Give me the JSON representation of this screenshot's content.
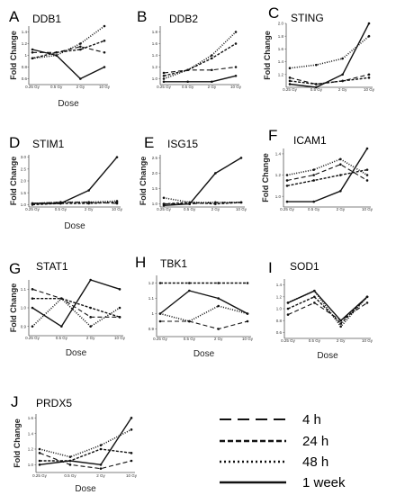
{
  "chart_data": [
    {
      "letter": "A",
      "title": "DDB1",
      "type": "line",
      "categories": [
        "0.25 Gy",
        "0.5 Gy",
        "2 Gy",
        "10 Gy"
      ],
      "xlabel": "Dose",
      "ylabel": "Fold Change",
      "yticks": [
        "0.6",
        "0.8",
        "1",
        "1.2",
        "1.4"
      ],
      "ylim": [
        0.5,
        1.5
      ],
      "series": [
        {
          "style": "4h",
          "values": [
            1.05,
            1.05,
            1.15,
            1.05
          ]
        },
        {
          "style": "24h",
          "values": [
            0.95,
            1.05,
            1.1,
            1.25
          ]
        },
        {
          "style": "48h",
          "values": [
            0.95,
            1.0,
            1.2,
            1.5
          ]
        },
        {
          "style": "1w",
          "values": [
            1.1,
            1.0,
            0.6,
            0.8
          ]
        }
      ]
    },
    {
      "letter": "B",
      "title": "DDB2",
      "type": "line",
      "categories": [
        "0.25 Gy",
        "0.5 Gy",
        "2 Gy",
        "10 Gy"
      ],
      "xlabel": "",
      "ylabel": "",
      "yticks": [
        "1.0",
        "1.2",
        "1.4",
        "1.6",
        "1.8"
      ],
      "ylim": [
        0.9,
        1.9
      ],
      "series": [
        {
          "style": "4h",
          "values": [
            1.1,
            1.15,
            1.15,
            1.2
          ]
        },
        {
          "style": "24h",
          "values": [
            1.05,
            1.15,
            1.35,
            1.6
          ]
        },
        {
          "style": "48h",
          "values": [
            1.0,
            1.15,
            1.4,
            1.8
          ]
        },
        {
          "style": "1w",
          "values": [
            0.95,
            0.95,
            0.95,
            1.05
          ]
        }
      ]
    },
    {
      "letter": "C",
      "title": "STING",
      "type": "line",
      "categories": [
        "0.25 Gy",
        "0.5 Gy",
        "2 Gy",
        "10 Gy"
      ],
      "xlabel": "",
      "ylabel": "Fold Change",
      "yticks": [
        "1.2",
        "1.4",
        "1.6",
        "1.8",
        "2.0"
      ],
      "ylim": [
        1.0,
        2.0
      ],
      "series": [
        {
          "style": "4h",
          "values": [
            1.15,
            1.05,
            1.1,
            1.2
          ]
        },
        {
          "style": "24h",
          "values": [
            1.1,
            1.05,
            1.1,
            1.15
          ]
        },
        {
          "style": "48h",
          "values": [
            1.3,
            1.35,
            1.45,
            1.8
          ]
        },
        {
          "style": "1w",
          "values": [
            1.05,
            1.0,
            1.2,
            2.0
          ]
        }
      ]
    },
    {
      "letter": "D",
      "title": "STIM1",
      "type": "line",
      "categories": [
        "0.25 Gy",
        "0.5 Gy",
        "2 Gy",
        "10 Gy"
      ],
      "xlabel": "Dose",
      "ylabel": "Fold Change",
      "yticks": [
        "1.0",
        "1.5",
        "2.0",
        "2.5",
        "3.0"
      ],
      "ylim": [
        0.9,
        3.1
      ],
      "series": [
        {
          "style": "4h",
          "values": [
            1.05,
            1.1,
            1.1,
            1.05
          ]
        },
        {
          "style": "24h",
          "values": [
            1.0,
            1.05,
            1.05,
            1.1
          ]
        },
        {
          "style": "48h",
          "values": [
            1.05,
            1.1,
            1.1,
            1.15
          ]
        },
        {
          "style": "1w",
          "values": [
            1.05,
            1.05,
            1.6,
            3.0
          ]
        }
      ]
    },
    {
      "letter": "E",
      "title": "ISG15",
      "type": "line",
      "categories": [
        "0.25 Gy",
        "0.5 Gy",
        "2 Gy",
        "10 Gy"
      ],
      "xlabel": "",
      "ylabel": "Fold Change",
      "yticks": [
        "1.0",
        "1.5",
        "2.0",
        "2.5"
      ],
      "ylim": [
        0.9,
        2.6
      ],
      "series": [
        {
          "style": "4h",
          "values": [
            1.0,
            1.0,
            1.05,
            1.05
          ]
        },
        {
          "style": "24h",
          "values": [
            1.0,
            1.05,
            1.0,
            1.05
          ]
        },
        {
          "style": "48h",
          "values": [
            1.2,
            1.05,
            1.05,
            1.05
          ]
        },
        {
          "style": "1w",
          "values": [
            0.95,
            1.0,
            2.0,
            2.5
          ]
        }
      ]
    },
    {
      "letter": "F",
      "title": "ICAM1",
      "type": "line",
      "categories": [
        "0.25 Gy",
        "0.5 Gy",
        "2 Gy",
        "10 Gy"
      ],
      "xlabel": "",
      "ylabel": "Fold Change",
      "yticks": [
        "1.0",
        "1.2",
        "1.4"
      ],
      "ylim": [
        0.9,
        1.45
      ],
      "series": [
        {
          "style": "4h",
          "values": [
            1.15,
            1.2,
            1.3,
            1.15
          ]
        },
        {
          "style": "24h",
          "values": [
            1.1,
            1.15,
            1.2,
            1.25
          ]
        },
        {
          "style": "48h",
          "values": [
            1.2,
            1.25,
            1.35,
            1.2
          ]
        },
        {
          "style": "1w",
          "values": [
            0.95,
            0.95,
            1.05,
            1.45
          ]
        }
      ]
    },
    {
      "letter": "G",
      "title": "STAT1",
      "type": "line",
      "categories": [
        "0.25 Gy",
        "0.5 Gy",
        "2 Gy",
        "10 Gy"
      ],
      "xlabel": "Dose",
      "ylabel": "Fold Change",
      "yticks": [
        "0.9",
        "1.0",
        "1.1"
      ],
      "ylim": [
        0.85,
        1.15
      ],
      "series": [
        {
          "style": "4h",
          "values": [
            1.1,
            1.05,
            0.95,
            0.95
          ]
        },
        {
          "style": "24h",
          "values": [
            1.05,
            1.05,
            1.0,
            0.95
          ]
        },
        {
          "style": "48h",
          "values": [
            0.9,
            1.05,
            0.9,
            1.0
          ]
        },
        {
          "style": "1w",
          "values": [
            1.0,
            0.9,
            1.15,
            1.1
          ]
        }
      ]
    },
    {
      "letter": "H",
      "title": "TBK1",
      "type": "line",
      "categories": [
        "0.25 Gy",
        "0.5 Gy",
        "2 Gy",
        "10 Gy"
      ],
      "xlabel": "Dose",
      "ylabel": "",
      "yticks": [
        "0.9",
        "1",
        "1.1",
        "1.2"
      ],
      "ylim": [
        0.85,
        1.25
      ],
      "series": [
        {
          "style": "4h",
          "values": [
            0.95,
            0.95,
            0.9,
            0.95
          ]
        },
        {
          "style": "24h",
          "values": [
            1.2,
            1.2,
            1.2,
            1.2
          ]
        },
        {
          "style": "48h",
          "values": [
            1.0,
            0.95,
            1.05,
            1.0
          ]
        },
        {
          "style": "1w",
          "values": [
            1.0,
            1.15,
            1.1,
            1.0
          ]
        }
      ]
    },
    {
      "letter": "I",
      "title": "SOD1",
      "type": "line",
      "categories": [
        "0.25 Gy",
        "0.5 Gy",
        "2 Gy",
        "10 Gy"
      ],
      "xlabel": "Dose",
      "ylabel": "",
      "yticks": [
        "0.6",
        "0.8",
        "1.0",
        "1.2",
        "1.4"
      ],
      "ylim": [
        0.5,
        1.5
      ],
      "series": [
        {
          "style": "4h",
          "values": [
            0.9,
            1.1,
            0.8,
            1.1
          ]
        },
        {
          "style": "24h",
          "values": [
            1.0,
            1.2,
            0.75,
            1.2
          ]
        },
        {
          "style": "48h",
          "values": [
            1.1,
            1.3,
            0.7,
            1.2
          ]
        },
        {
          "style": "1w",
          "values": [
            1.1,
            1.3,
            0.8,
            1.2
          ]
        }
      ]
    },
    {
      "letter": "J",
      "title": "PRDX5",
      "type": "line",
      "categories": [
        "0.25 Gy",
        "0.5 Gy",
        "2 Gy",
        "10 Gy"
      ],
      "xlabel": "Dose",
      "ylabel": "Fold Change",
      "yticks": [
        "1.0",
        "1.2",
        "1.4",
        "1.6"
      ],
      "ylim": [
        0.9,
        1.65
      ],
      "series": [
        {
          "style": "4h",
          "values": [
            1.15,
            1.0,
            0.95,
            1.05
          ]
        },
        {
          "style": "24h",
          "values": [
            1.05,
            1.05,
            1.2,
            1.15
          ]
        },
        {
          "style": "48h",
          "values": [
            1.2,
            1.1,
            1.25,
            1.45
          ]
        },
        {
          "style": "1w",
          "values": [
            1.0,
            1.05,
            1.0,
            1.6
          ]
        }
      ]
    }
  ],
  "legend": [
    {
      "style": "4h",
      "label": "4 h"
    },
    {
      "style": "24h",
      "label": "24 h"
    },
    {
      "style": "48h",
      "label": "48 h"
    },
    {
      "style": "1w",
      "label": "1 week"
    }
  ]
}
